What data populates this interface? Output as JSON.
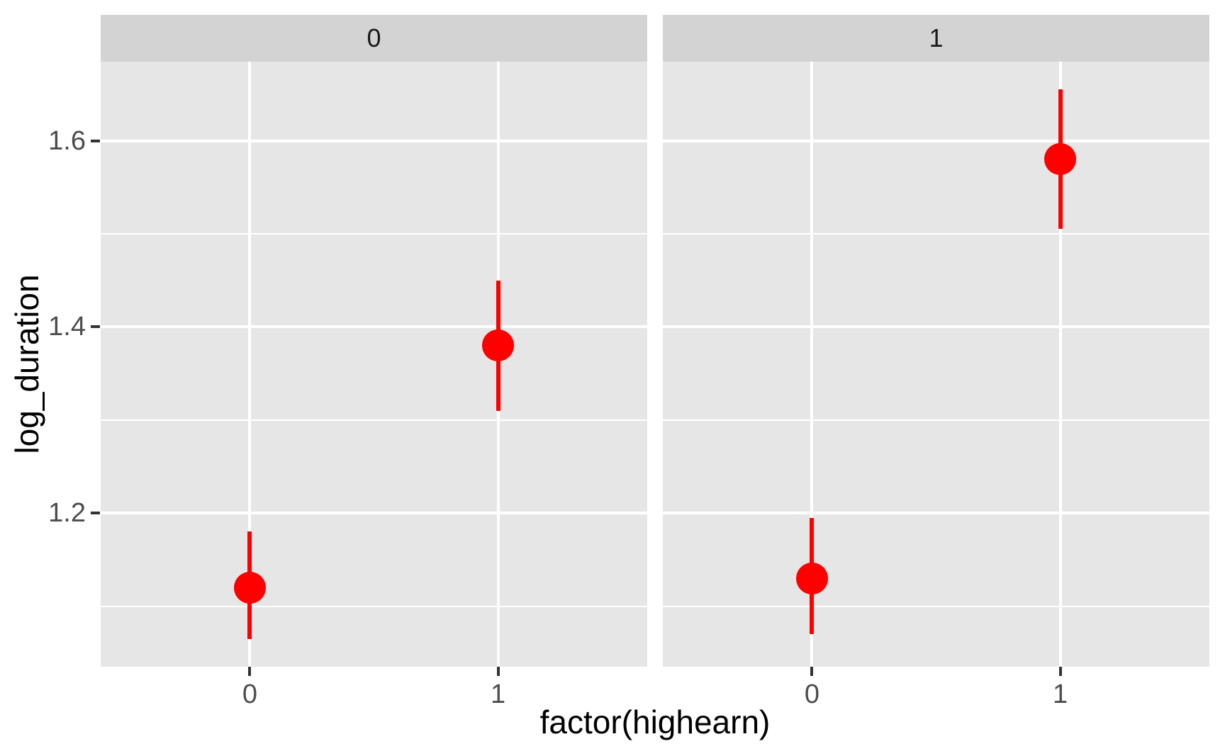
{
  "chart_data": {
    "type": "pointrange",
    "title": "",
    "xlabel": "factor(highearn)",
    "ylabel": "log_duration",
    "x_categories": [
      "0",
      "1"
    ],
    "ylim": [
      1.035,
      1.685
    ],
    "y_major_ticks": [
      1.2,
      1.4,
      1.6
    ],
    "y_major_tick_labels": [
      "1.2",
      "1.4",
      "1.6"
    ],
    "y_minor_gridlines": [
      1.1,
      1.3,
      1.5
    ],
    "grid": "white major+minor horizontal lines and major vertical lines on gray panel",
    "legend_position": "none",
    "facets": [
      {
        "label": "0",
        "points": [
          {
            "x": "0",
            "y": 1.12,
            "ymin": 1.065,
            "ymax": 1.18
          },
          {
            "x": "1",
            "y": 1.38,
            "ymin": 1.31,
            "ymax": 1.45
          }
        ]
      },
      {
        "label": "1",
        "points": [
          {
            "x": "0",
            "y": 1.13,
            "ymin": 1.07,
            "ymax": 1.195
          },
          {
            "x": "1",
            "y": 1.58,
            "ymin": 1.505,
            "ymax": 1.655
          }
        ]
      }
    ],
    "colors": {
      "point": "#FF0000",
      "range_bar": "#FF0000",
      "panel_bg": "#E6E6E6",
      "strip_bg": "#D3D3D3",
      "gridline": "#FFFFFF",
      "tick_mark": "#333333",
      "tick_label": "#4D4D4D",
      "axis_title": "#000000",
      "strip_text": "#1A1A1A",
      "background": "#FFFFFF"
    }
  }
}
